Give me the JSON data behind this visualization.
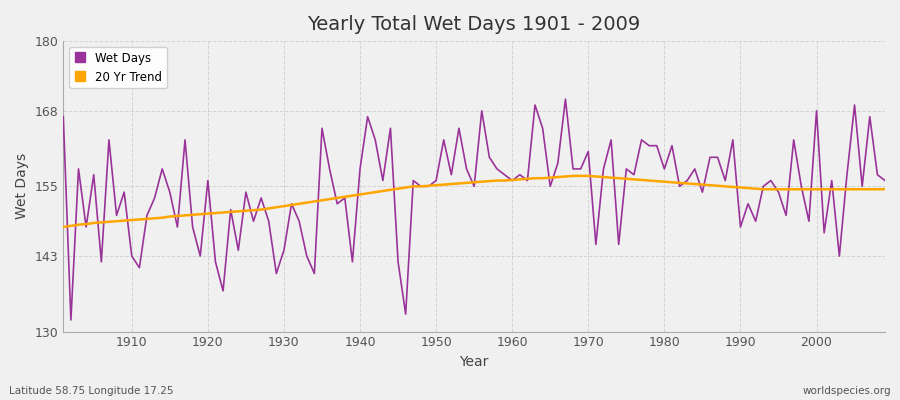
{
  "title": "Yearly Total Wet Days 1901 - 2009",
  "xlabel": "Year",
  "ylabel": "Wet Days",
  "subtitle_left": "Latitude 58.75 Longitude 17.25",
  "subtitle_right": "worldspecies.org",
  "ylim": [
    130,
    180
  ],
  "yticks": [
    130,
    143,
    155,
    168,
    180
  ],
  "xticks": [
    1910,
    1920,
    1930,
    1940,
    1950,
    1960,
    1970,
    1980,
    1990,
    2000
  ],
  "xlim": [
    1901,
    2009
  ],
  "wet_days_color": "#993399",
  "trend_color": "#FFA500",
  "background_color": "#F0F0F0",
  "plot_bg_color": "#F0F0F0",
  "grid_color": "#CCCCCC",
  "years": [
    1901,
    1902,
    1903,
    1904,
    1905,
    1906,
    1907,
    1908,
    1909,
    1910,
    1911,
    1912,
    1913,
    1914,
    1915,
    1916,
    1917,
    1918,
    1919,
    1920,
    1921,
    1922,
    1923,
    1924,
    1925,
    1926,
    1927,
    1928,
    1929,
    1930,
    1931,
    1932,
    1933,
    1934,
    1935,
    1936,
    1937,
    1938,
    1939,
    1940,
    1941,
    1942,
    1943,
    1944,
    1945,
    1946,
    1947,
    1948,
    1949,
    1950,
    1951,
    1952,
    1953,
    1954,
    1955,
    1956,
    1957,
    1958,
    1959,
    1960,
    1961,
    1962,
    1963,
    1964,
    1965,
    1966,
    1967,
    1968,
    1969,
    1970,
    1971,
    1972,
    1973,
    1974,
    1975,
    1976,
    1977,
    1978,
    1979,
    1980,
    1981,
    1982,
    1983,
    1984,
    1985,
    1986,
    1987,
    1988,
    1989,
    1990,
    1991,
    1992,
    1993,
    1994,
    1995,
    1996,
    1997,
    1998,
    1999,
    2000,
    2001,
    2002,
    2003,
    2004,
    2005,
    2006,
    2007,
    2008,
    2009
  ],
  "wet_days": [
    167.0,
    132.0,
    158.0,
    148.0,
    157.0,
    142.0,
    163.0,
    150.0,
    154.0,
    143.0,
    141.0,
    150.0,
    153.0,
    158.0,
    154.0,
    148.0,
    163.0,
    148.0,
    143.0,
    156.0,
    142.0,
    137.0,
    151.0,
    144.0,
    154.0,
    149.0,
    153.0,
    149.0,
    140.0,
    144.0,
    152.0,
    149.0,
    143.0,
    140.0,
    165.0,
    158.0,
    152.0,
    153.0,
    142.0,
    158.0,
    167.0,
    163.0,
    156.0,
    165.0,
    142.0,
    133.0,
    156.0,
    155.0,
    155.0,
    156.0,
    163.0,
    157.0,
    165.0,
    158.0,
    155.0,
    168.0,
    160.0,
    158.0,
    157.0,
    156.0,
    157.0,
    156.0,
    169.0,
    165.0,
    155.0,
    159.0,
    170.0,
    158.0,
    158.0,
    161.0,
    145.0,
    158.0,
    163.0,
    145.0,
    158.0,
    157.0,
    163.0,
    162.0,
    162.0,
    158.0,
    162.0,
    155.0,
    156.0,
    158.0,
    154.0,
    160.0,
    160.0,
    156.0,
    163.0,
    148.0,
    152.0,
    149.0,
    155.0,
    156.0,
    154.0,
    150.0,
    163.0,
    155.0,
    149.0,
    168.0,
    147.0,
    156.0,
    143.0,
    157.0,
    169.0,
    155.0,
    167.0,
    157.0,
    156.0
  ],
  "trend": [
    148.0,
    148.2,
    148.4,
    148.5,
    148.7,
    148.8,
    148.9,
    149.0,
    149.1,
    149.2,
    149.3,
    149.4,
    149.5,
    149.6,
    149.8,
    149.9,
    150.0,
    150.1,
    150.2,
    150.3,
    150.4,
    150.5,
    150.6,
    150.7,
    150.8,
    150.9,
    151.0,
    151.2,
    151.4,
    151.6,
    151.8,
    152.0,
    152.2,
    152.4,
    152.6,
    152.8,
    153.0,
    153.2,
    153.4,
    153.6,
    153.8,
    154.0,
    154.2,
    154.4,
    154.6,
    154.8,
    155.0,
    155.0,
    155.1,
    155.2,
    155.3,
    155.4,
    155.5,
    155.6,
    155.7,
    155.8,
    155.9,
    156.0,
    156.0,
    156.1,
    156.2,
    156.3,
    156.4,
    156.4,
    156.5,
    156.6,
    156.7,
    156.8,
    156.8,
    156.8,
    156.7,
    156.6,
    156.5,
    156.4,
    156.3,
    156.2,
    156.1,
    156.0,
    155.9,
    155.8,
    155.7,
    155.6,
    155.5,
    155.4,
    155.3,
    155.2,
    155.1,
    155.0,
    154.9,
    154.8,
    154.7,
    154.6,
    154.5,
    154.5,
    154.5,
    154.5,
    154.5,
    154.5,
    154.5,
    154.5,
    154.5,
    154.5,
    154.5,
    154.5,
    154.5,
    154.5,
    154.5,
    154.5,
    154.5
  ]
}
